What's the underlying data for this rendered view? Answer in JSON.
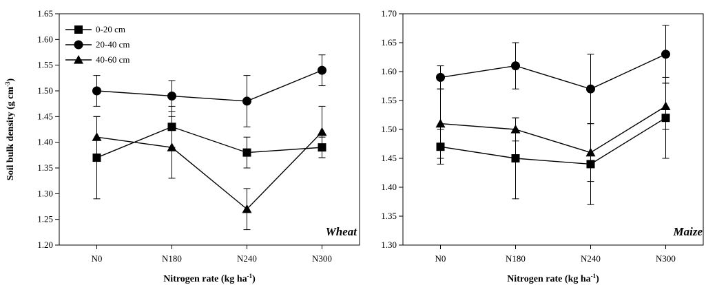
{
  "chart_data": [
    {
      "type": "line",
      "panel_label": "Wheat",
      "xlabel": "Nitrogen rate (kg ha",
      "xlabel_sup": "-1",
      "xlabel_end": ")",
      "ylabel": "Soil bulk density (g cm",
      "ylabel_sup": "-3",
      "ylabel_end": ")",
      "categories": [
        "N0",
        "N180",
        "N240",
        "N300"
      ],
      "ylim": [
        1.2,
        1.65
      ],
      "yticks": [
        "1.20",
        "1.25",
        "1.30",
        "1.35",
        "1.40",
        "1.45",
        "1.50",
        "1.55",
        "1.60",
        "1.65"
      ],
      "legend_position": "top-left",
      "series": [
        {
          "name": "0-20 cm",
          "marker": "square",
          "values": [
            1.37,
            1.43,
            1.38,
            1.39
          ],
          "errors": [
            0.08,
            0.04,
            0.03,
            0.02
          ]
        },
        {
          "name": "20-40 cm",
          "marker": "circle",
          "values": [
            1.5,
            1.49,
            1.48,
            1.54
          ],
          "errors": [
            0.03,
            0.03,
            0.05,
            0.03
          ]
        },
        {
          "name": "40-60 cm",
          "marker": "triangle",
          "values": [
            1.41,
            1.39,
            1.27,
            1.42
          ],
          "errors": [
            0.04,
            0.06,
            0.04,
            0.05
          ]
        }
      ]
    },
    {
      "type": "line",
      "panel_label": "Maize",
      "xlabel": "Nitrogen rate (kg ha",
      "xlabel_sup": "-1",
      "xlabel_end": ")",
      "ylabel": "",
      "categories": [
        "N0",
        "N180",
        "N240",
        "N300"
      ],
      "ylim": [
        1.3,
        1.7
      ],
      "yticks": [
        "1.30",
        "1.35",
        "1.40",
        "1.45",
        "1.50",
        "1.55",
        "1.60",
        "1.65",
        "1.70"
      ],
      "series": [
        {
          "name": "0-20 cm",
          "marker": "square",
          "values": [
            1.47,
            1.45,
            1.44,
            1.52
          ],
          "errors": [
            0.03,
            0.07,
            0.07,
            0.07
          ]
        },
        {
          "name": "20-40 cm",
          "marker": "circle",
          "values": [
            1.59,
            1.61,
            1.57,
            1.63
          ],
          "errors": [
            0.02,
            0.04,
            0.06,
            0.05
          ]
        },
        {
          "name": "40-60 cm",
          "marker": "triangle",
          "values": [
            1.51,
            1.5,
            1.46,
            1.54
          ],
          "errors": [
            0.06,
            0.02,
            0.05,
            0.04
          ]
        }
      ]
    }
  ]
}
